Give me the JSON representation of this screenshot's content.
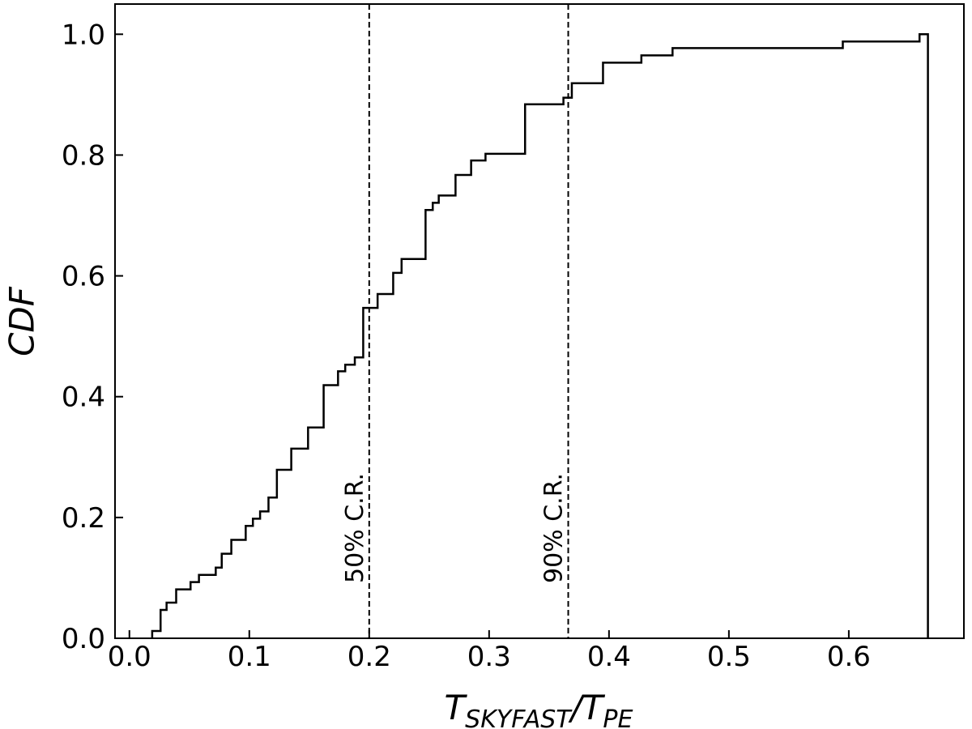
{
  "chart_data": {
    "type": "step",
    "xlabel": [
      "T",
      "SKYFAST",
      "/T",
      "PE"
    ],
    "ylabel": "CDF",
    "x": [
      0.019,
      0.019,
      0.026,
      0.031,
      0.039,
      0.051,
      0.058,
      0.072,
      0.077,
      0.085,
      0.097,
      0.103,
      0.109,
      0.116,
      0.123,
      0.135,
      0.149,
      0.162,
      0.174,
      0.18,
      0.188,
      0.195,
      0.207,
      0.22,
      0.227,
      0.247,
      0.253,
      0.258,
      0.272,
      0.285,
      0.297,
      0.33,
      0.362,
      0.369,
      0.395,
      0.427,
      0.453,
      0.595,
      0.659,
      0.666
    ],
    "values": [
      0,
      0.012,
      0.047,
      0.059,
      0.081,
      0.093,
      0.105,
      0.117,
      0.14,
      0.163,
      0.186,
      0.198,
      0.21,
      0.233,
      0.279,
      0.314,
      0.349,
      0.419,
      0.442,
      0.453,
      0.465,
      0.547,
      0.57,
      0.605,
      0.628,
      0.709,
      0.721,
      0.733,
      0.767,
      0.791,
      0.802,
      0.884,
      0.895,
      0.919,
      0.953,
      0.965,
      0.977,
      0.988,
      1.0,
      0
    ],
    "color": "#000000",
    "xlim": [
      -0.012,
      0.696
    ],
    "ylim": [
      0,
      1.05
    ],
    "xticks": [
      {
        "value": 0,
        "label": "0.0"
      },
      0.1,
      0.2,
      0.3,
      0.4,
      0.5,
      0.6
    ],
    "yticks": [
      {
        "value": 0,
        "label": "0.0"
      },
      0.2,
      0.4,
      0.6,
      0.8,
      {
        "value": 1,
        "label": "1.0"
      }
    ],
    "vlines": [
      {
        "x": 0.2,
        "label": "50% C.R."
      },
      {
        "x": 0.366,
        "label": "90% C.R."
      }
    ]
  }
}
